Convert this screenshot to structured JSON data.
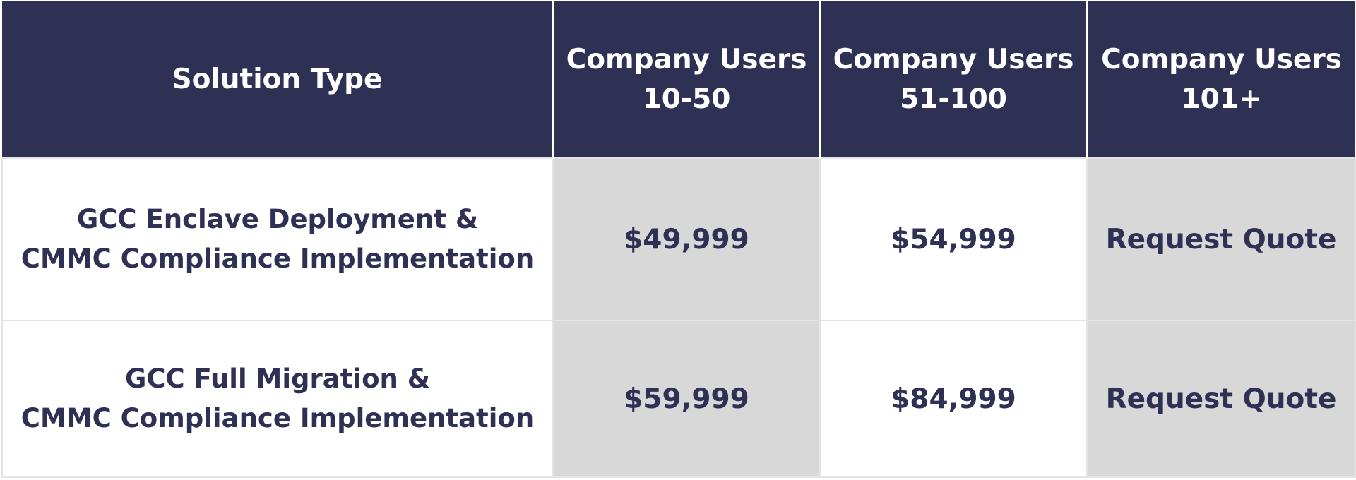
{
  "table": {
    "headers": [
      {
        "line1": "Solution Type",
        "line2": ""
      },
      {
        "line1": "Company Users",
        "line2": "10-50"
      },
      {
        "line1": "Company Users",
        "line2": "51-100"
      },
      {
        "line1": "Company Users",
        "line2": "101+"
      }
    ],
    "rows": [
      {
        "solution_line1": "GCC Enclave Deployment &",
        "solution_line2": "CMMC Compliance Implementation",
        "prices": [
          "$49,999",
          "$54,999",
          "Request Quote"
        ]
      },
      {
        "solution_line1": "GCC Full Migration &",
        "solution_line2": "CMMC Compliance Implementation",
        "prices": [
          "$59,999",
          "$84,999",
          "Request Quote"
        ]
      }
    ]
  },
  "colors": {
    "header_background": "#2e3054",
    "header_text": "#ffffff",
    "body_text": "#2e3054",
    "shaded_cell": "#d8d8d8",
    "plain_cell": "#ffffff"
  }
}
